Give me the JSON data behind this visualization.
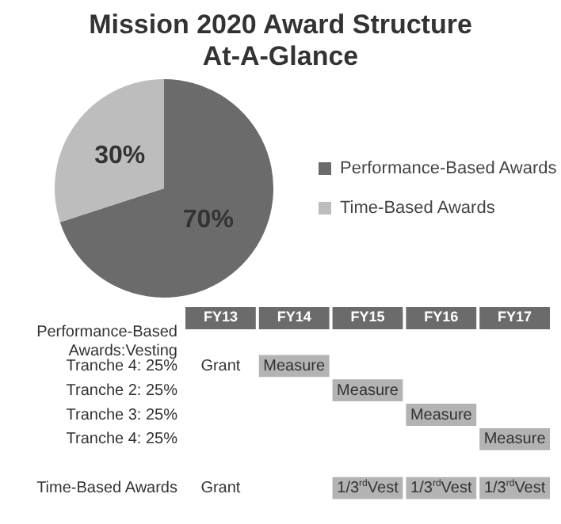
{
  "chart_data": [
    {
      "type": "pie",
      "title": "Mission 2020 Award Structure At-A-Glance",
      "categories": [
        "Performance-Based Awards",
        "Time-Based Awards"
      ],
      "values": [
        70,
        30
      ],
      "colors": [
        "#6b6b6b",
        "#bdbdbd"
      ],
      "value_labels": [
        "70%",
        "30%"
      ],
      "legend": "right"
    },
    {
      "type": "other",
      "categories": [
        "FY13",
        "FY14",
        "FY15",
        "FY16",
        "FY17"
      ],
      "y_categories": [
        "Performance-Based Awards:Vesting",
        "Tranche 4: 25%",
        "Tranche 2: 25%",
        "Tranche 3: 25%",
        "Tranche 4: 25%",
        null,
        "Time-Based Awards"
      ],
      "cell_labels": [
        [
          null,
          null,
          null,
          null,
          null
        ],
        [
          "Grant",
          "Measure",
          null,
          null,
          null
        ],
        [
          null,
          null,
          "Measure",
          null,
          null
        ],
        [
          null,
          null,
          null,
          "Measure",
          null
        ],
        [
          null,
          null,
          null,
          null,
          "Measure"
        ],
        [
          null,
          null,
          null,
          null,
          null
        ],
        [
          "Grant",
          null,
          "1/3$^{rd}$Vest",
          "1/3$^{rd}$Vest",
          "1/3$^{rd}$Vest"
        ]
      ],
      "colors": [
        [
          null,
          null,
          null,
          null,
          null
        ],
        [
          null,
          "#b3b3b3",
          null,
          null,
          null
        ],
        [
          null,
          null,
          "#b3b3b3",
          null,
          null
        ],
        [
          null,
          null,
          null,
          "#b3b3b3",
          null
        ],
        [
          null,
          null,
          null,
          null,
          "#b3b3b3"
        ],
        [
          null,
          null,
          null,
          null,
          null
        ],
        [
          null,
          null,
          "#b3b3b3",
          "#b3b3b3",
          "#b3b3b3"
        ]
      ],
      "legend": false
    }
  ]
}
